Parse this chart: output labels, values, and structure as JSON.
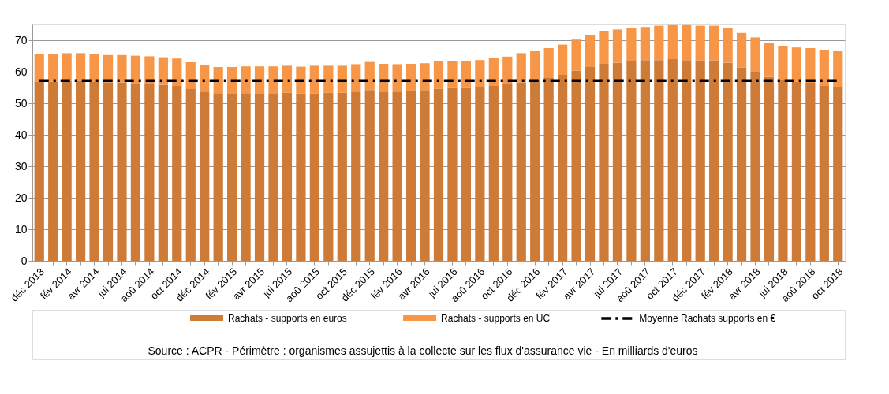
{
  "chart_data": {
    "type": "bar",
    "stacked": true,
    "categories": [
      "déc 2013",
      null,
      "fév 2014",
      null,
      "avr 2014",
      null,
      "jui 2014",
      null,
      "aoû 2014",
      null,
      "oct 2014",
      null,
      "déc 2014",
      null,
      "fév 2015",
      null,
      "avr 2015",
      null,
      "jui 2015",
      null,
      "aoû 2015",
      null,
      "oct 2015",
      null,
      "déc 2015",
      null,
      "fév 2016",
      null,
      "avr 2016",
      null,
      "jui 2016",
      null,
      "aoû 2016",
      null,
      "oct 2016",
      null,
      "déc 2016",
      null,
      "fév 2017",
      null,
      "avr 2017",
      null,
      "jui 2017",
      null,
      "aoû 2017",
      null,
      "oct 2017",
      null,
      "déc 2017",
      null,
      "fév 2018",
      null,
      "avr 2018",
      null,
      "jui 2018",
      null,
      "aoû 2018",
      null,
      "oct 2018"
    ],
    "series": [
      {
        "name": "Rachats - supports en euros",
        "color": "#cd7b37",
        "values": [
          56.8,
          56.9,
          57.1,
          57.1,
          56.8,
          56.6,
          56.6,
          56.2,
          56.2,
          55.9,
          55.5,
          54.5,
          53.7,
          53.2,
          53.0,
          53.2,
          53.2,
          53.2,
          53.3,
          53.1,
          53.1,
          53.3,
          53.3,
          53.7,
          54.2,
          53.7,
          53.5,
          54.0,
          54.2,
          54.6,
          54.8,
          54.8,
          55.2,
          55.5,
          56.1,
          56.6,
          57.5,
          58.2,
          59.0,
          60.3,
          61.5,
          62.5,
          62.9,
          63.4,
          63.7,
          63.7,
          64.0,
          63.7,
          63.6,
          63.6,
          62.9,
          61.3,
          59.9,
          58.4,
          57.4,
          56.8,
          56.5,
          55.7,
          55.2
        ]
      },
      {
        "name": "Rachats - supports en UC",
        "color": "#f79646",
        "values": [
          8.9,
          8.8,
          8.8,
          8.8,
          8.7,
          8.7,
          8.7,
          8.9,
          8.7,
          8.7,
          8.7,
          8.5,
          8.3,
          8.3,
          8.5,
          8.5,
          8.5,
          8.5,
          8.6,
          8.5,
          8.8,
          8.6,
          8.6,
          8.7,
          8.9,
          8.8,
          8.9,
          8.5,
          8.5,
          8.7,
          8.7,
          8.5,
          8.5,
          8.8,
          8.7,
          9.3,
          9.0,
          9.3,
          9.6,
          9.9,
          10.0,
          10.5,
          10.5,
          10.6,
          10.5,
          10.9,
          10.8,
          11.1,
          11.0,
          11.0,
          11.1,
          11.0,
          11.0,
          10.8,
          10.7,
          10.9,
          11.0,
          11.2,
          11.3
        ]
      },
      {
        "name": "Moyenne Rachats supports en €",
        "type": "line",
        "color": "#000000",
        "line_style": "dashed",
        "values": [
          57.2,
          57.2,
          57.2,
          57.2,
          57.2,
          57.2,
          57.2,
          57.2,
          57.2,
          57.2,
          57.2,
          57.2,
          57.2,
          57.2,
          57.2,
          57.2,
          57.2,
          57.2,
          57.2,
          57.2,
          57.2,
          57.2,
          57.2,
          57.2,
          57.2,
          57.2,
          57.2,
          57.2,
          57.2,
          57.2,
          57.2,
          57.2,
          57.2,
          57.2,
          57.2,
          57.2,
          57.2,
          57.2,
          57.2,
          57.2,
          57.2,
          57.2,
          57.2,
          57.2,
          57.2,
          57.2,
          57.2,
          57.2,
          57.2,
          57.2,
          57.2,
          57.2,
          57.2,
          57.2,
          57.2,
          57.2,
          57.2,
          57.2,
          57.2
        ]
      }
    ],
    "ylim": [
      0,
      75
    ],
    "yticks": [
      0,
      10,
      20,
      30,
      40,
      50,
      60,
      70
    ],
    "grid": "y",
    "legend": "bottom",
    "annotations": [
      "Source : ACPR - Périmètre : organismes assujettis à la  collecte sur les flux d'assurance vie - En milliards d'euros"
    ]
  }
}
